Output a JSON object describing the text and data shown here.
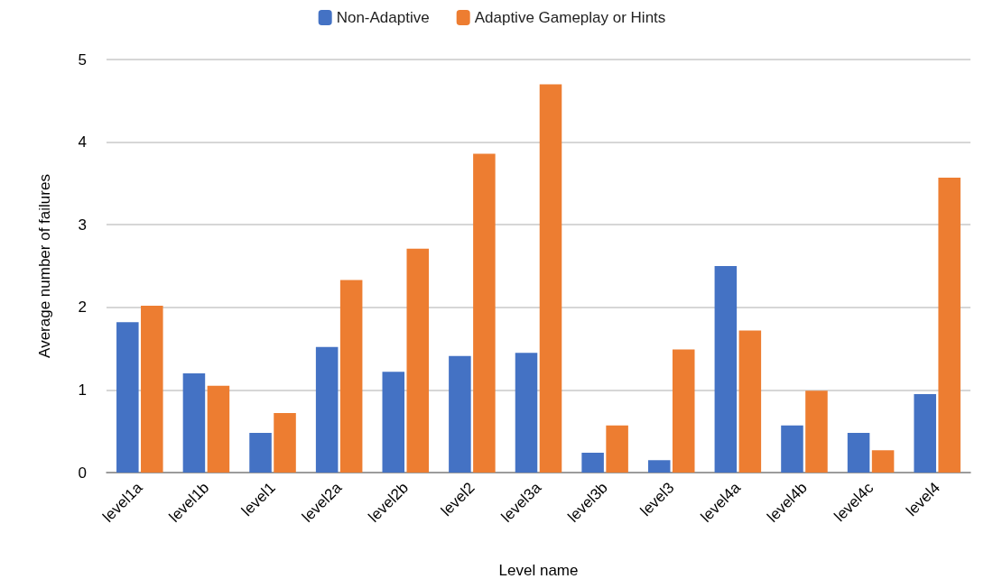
{
  "chart_data": {
    "type": "bar",
    "xlabel": "Level name",
    "ylabel": "Average number of failures",
    "categories": [
      "level1a",
      "level1b",
      "level1",
      "level2a",
      "level2b",
      "level2",
      "level3a",
      "level3b",
      "level3",
      "level4a",
      "level4b",
      "level4c",
      "level4"
    ],
    "series": [
      {
        "name": "Non-Adaptive",
        "color": "#4472c4",
        "values": [
          1.82,
          1.2,
          0.48,
          1.52,
          1.22,
          1.41,
          1.45,
          0.24,
          0.15,
          2.5,
          0.57,
          0.48,
          0.95
        ]
      },
      {
        "name": "Adaptive Gameplay or Hints",
        "color": "#ed7d31",
        "values": [
          2.02,
          1.05,
          0.72,
          2.33,
          2.71,
          3.86,
          4.7,
          0.57,
          1.49,
          1.72,
          0.99,
          0.27,
          3.57
        ]
      }
    ],
    "ylim": [
      0,
      5
    ],
    "yticks": [
      0,
      1,
      2,
      3,
      4,
      5
    ],
    "grid": "y",
    "legend": "top"
  }
}
